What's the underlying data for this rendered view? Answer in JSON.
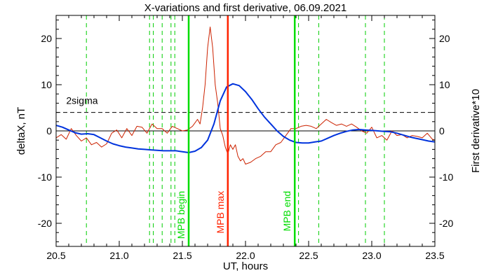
{
  "chart_data": {
    "type": "line",
    "title": "X-variations and first derivative, 06.09.2021",
    "xlabel": "UT, hours",
    "ylabel_left": "deltaX, nT",
    "ylabel_right": "First derivative*10",
    "xlim": [
      20.5,
      23.5
    ],
    "ylim": [
      -25,
      25
    ],
    "xticks": [
      "20.5",
      "21.0",
      "21.5",
      "22.0",
      "22.5",
      "23.0",
      "23.5"
    ],
    "yticks": [
      "20",
      "10",
      "0",
      "-10",
      "-20"
    ],
    "colors": {
      "deltaX": "#0033dd",
      "derivative": "#cc2200",
      "mpb": "#00dd00",
      "mpb_dashed": "#00cc00",
      "max": "#ff2200",
      "axes": "#000000"
    },
    "sigma": {
      "label": "2sigma",
      "value": 4.0
    },
    "zero_line": 0,
    "vlines": [
      {
        "x": 21.55,
        "label": "MPB begin",
        "color": "#00dd00",
        "style": "solid"
      },
      {
        "x": 21.86,
        "label": "MPB max",
        "color": "#ff2200",
        "style": "solid"
      },
      {
        "x": 22.39,
        "label": "MPB end",
        "color": "#00dd00",
        "style": "solid"
      }
    ],
    "dashed_vlines": [
      20.74,
      21.24,
      21.27,
      21.34,
      21.41,
      21.44,
      22.42,
      22.58,
      22.95,
      23.1
    ],
    "series": [
      {
        "key": "deltaX",
        "x": [
          20.5,
          20.55,
          20.6,
          20.65,
          20.7,
          20.75,
          20.8,
          20.85,
          20.9,
          20.95,
          21.0,
          21.05,
          21.1,
          21.15,
          21.2,
          21.25,
          21.3,
          21.35,
          21.4,
          21.45,
          21.5,
          21.55,
          21.6,
          21.65,
          21.7,
          21.75,
          21.8,
          21.85,
          21.9,
          21.95,
          22.0,
          22.05,
          22.1,
          22.15,
          22.2,
          22.25,
          22.3,
          22.35,
          22.4,
          22.45,
          22.5,
          22.55,
          22.6,
          22.65,
          22.7,
          22.75,
          22.8,
          22.85,
          22.9,
          22.95,
          23.0,
          23.05,
          23.1,
          23.15,
          23.2,
          23.25,
          23.3,
          23.35,
          23.4,
          23.45,
          23.5
        ],
        "values": [
          1.2,
          0.8,
          0.2,
          -0.4,
          -0.7,
          -0.6,
          -0.8,
          -1.5,
          -2.2,
          -2.8,
          -3.2,
          -3.5,
          -3.7,
          -3.9,
          -4.0,
          -4.1,
          -4.2,
          -4.3,
          -4.3,
          -4.3,
          -4.5,
          -4.7,
          -4.4,
          -3.6,
          -2.0,
          1.5,
          6.5,
          9.5,
          10.2,
          9.8,
          8.5,
          6.8,
          4.8,
          3.0,
          1.5,
          0.0,
          -1.2,
          -2.0,
          -2.5,
          -2.6,
          -2.6,
          -2.4,
          -2.2,
          -1.6,
          -1.0,
          -0.5,
          -0.1,
          0.2,
          0.3,
          0.2,
          0.1,
          0.0,
          -0.1,
          -0.2,
          -0.5,
          -0.9,
          -1.3,
          -1.6,
          -1.9,
          -2.2,
          -2.4
        ]
      },
      {
        "key": "derivative",
        "x": [
          20.5,
          20.54,
          20.58,
          20.62,
          20.66,
          20.7,
          20.74,
          20.78,
          20.82,
          20.86,
          20.9,
          20.94,
          20.98,
          21.02,
          21.06,
          21.1,
          21.14,
          21.18,
          21.22,
          21.26,
          21.3,
          21.34,
          21.38,
          21.42,
          21.46,
          21.5,
          21.54,
          21.58,
          21.62,
          21.64,
          21.66,
          21.68,
          21.7,
          21.72,
          21.74,
          21.76,
          21.78,
          21.8,
          21.82,
          21.84,
          21.86,
          21.88,
          21.9,
          21.92,
          21.94,
          21.96,
          21.98,
          22.0,
          22.04,
          22.08,
          22.12,
          22.16,
          22.2,
          22.24,
          22.28,
          22.32,
          22.36,
          22.4,
          22.44,
          22.48,
          22.52,
          22.56,
          22.6,
          22.64,
          22.68,
          22.72,
          22.76,
          22.8,
          22.84,
          22.88,
          22.92,
          22.96,
          23.0,
          23.04,
          23.08,
          23.12,
          23.16,
          23.2,
          23.24,
          23.28,
          23.32,
          23.36,
          23.4,
          23.44,
          23.48,
          23.5
        ],
        "values": [
          -1.5,
          -0.8,
          -1.8,
          0.5,
          -1.0,
          -2.2,
          -1.5,
          -3.0,
          -2.5,
          -3.5,
          -2.8,
          -0.5,
          0.2,
          -1.5,
          0.5,
          -1.0,
          1.0,
          0.8,
          -0.5,
          1.5,
          0.5,
          0.5,
          -0.5,
          1.0,
          0.5,
          0.0,
          0.2,
          1.0,
          2.5,
          1.5,
          5.0,
          10.0,
          18.0,
          22.5,
          18.0,
          10.0,
          6.0,
          0.5,
          -1.0,
          -3.5,
          -5.0,
          -3.0,
          -4.0,
          -3.0,
          -5.5,
          -6.5,
          -6.0,
          -7.2,
          -6.8,
          -6.0,
          -5.5,
          -4.5,
          -4.5,
          -3.0,
          -2.5,
          -1.0,
          0.5,
          0.5,
          1.0,
          1.2,
          1.0,
          0.5,
          1.5,
          2.5,
          1.8,
          1.2,
          1.5,
          1.0,
          1.5,
          0.8,
          0.0,
          -0.5,
          0.8,
          -1.5,
          -1.0,
          -2.0,
          0.0,
          -1.0,
          -0.8,
          -1.5,
          -1.0,
          -1.2,
          -1.5,
          -0.5,
          -1.8,
          -2.0
        ]
      }
    ]
  }
}
